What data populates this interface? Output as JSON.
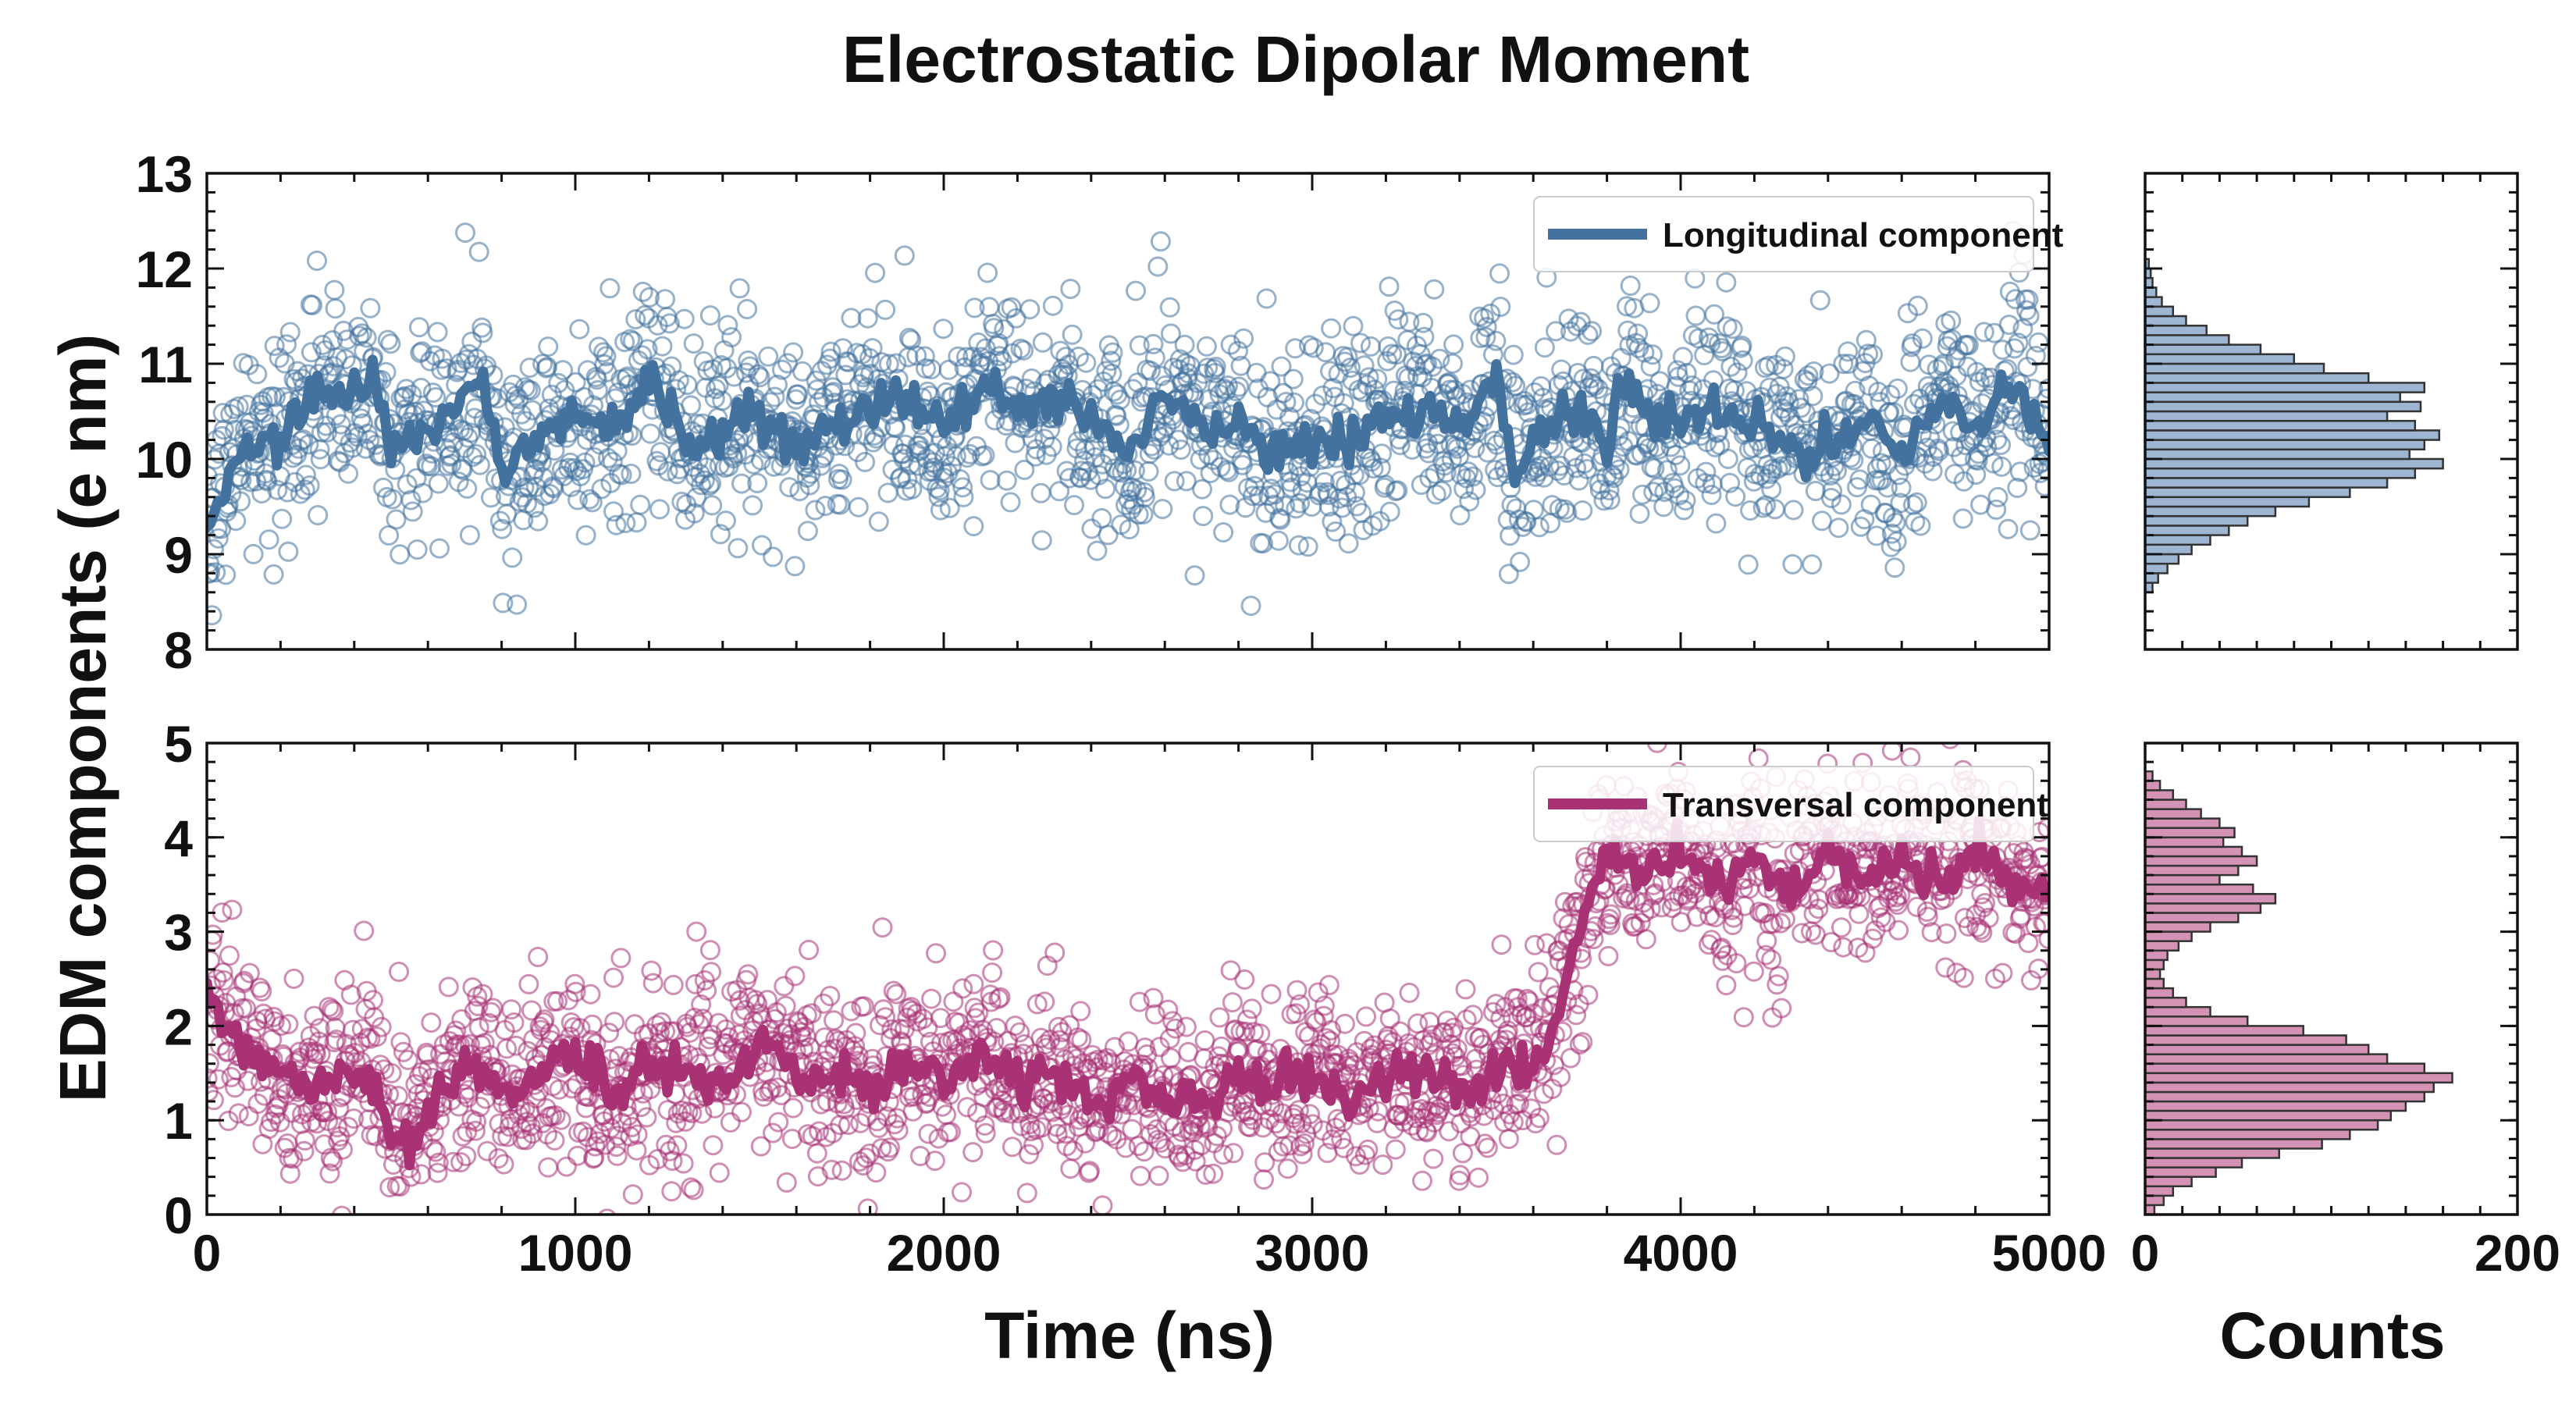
{
  "title": "Electrostatic Dipolar Moment",
  "ylabel": "EDM components (e nm)",
  "xlabel": "Time (ns)",
  "hist_xlabel": "Counts",
  "colors": {
    "longitudinal": "#44729f",
    "transversal": "#a83274",
    "long_hist_fill": "#9eb6d1",
    "trans_hist_fill": "#d492b4"
  },
  "chart_data": [
    {
      "type": "scatter",
      "panel": "top",
      "series_name": "Longitudinal component",
      "legend_position": "top-right",
      "xlim": [
        0,
        5000
      ],
      "ylim": [
        8,
        13
      ],
      "xticks": [
        0,
        1000,
        2000,
        3000,
        4000,
        5000
      ],
      "yticks": [
        8,
        9,
        10,
        11,
        12,
        13
      ],
      "ytick_labels": [
        "8",
        "9",
        "10",
        "11",
        "12",
        "13"
      ],
      "n_points": 2000,
      "scatter_spread_sd": 0.55,
      "running_mean": {
        "x": [
          0,
          100,
          200,
          300,
          400,
          450,
          500,
          600,
          700,
          750,
          800,
          900,
          1000,
          1100,
          1200,
          1300,
          1400,
          1500,
          1600,
          1700,
          1800,
          1900,
          2000,
          2100,
          2200,
          2300,
          2400,
          2500,
          2600,
          2700,
          2800,
          2900,
          3000,
          3100,
          3200,
          3300,
          3400,
          3500,
          3550,
          3600,
          3700,
          3800,
          3850,
          3900,
          4000,
          4100,
          4200,
          4300,
          4350,
          4400,
          4500,
          4600,
          4700,
          4800,
          4900,
          5000
        ],
        "y": [
          9.3,
          10.2,
          10.1,
          10.7,
          10.6,
          10.9,
          10.1,
          10.3,
          10.6,
          10.8,
          9.9,
          10.2,
          10.4,
          10.3,
          10.9,
          10.3,
          10.3,
          10.5,
          10.2,
          10.4,
          10.5,
          10.6,
          10.3,
          10.8,
          10.5,
          10.7,
          10.4,
          10.0,
          10.7,
          10.3,
          10.4,
          10.0,
          10.2,
          10.2,
          10.4,
          10.6,
          10.3,
          10.9,
          9.8,
          10.2,
          10.6,
          10.2,
          10.8,
          10.4,
          10.4,
          10.6,
          10.4,
          10.2,
          10.0,
          10.2,
          10.4,
          10.0,
          10.6,
          10.3,
          10.8,
          10.2
        ]
      }
    },
    {
      "type": "scatter",
      "panel": "bottom",
      "series_name": "Transversal component",
      "legend_position": "top-right",
      "xlim": [
        0,
        5000
      ],
      "ylim": [
        0,
        5
      ],
      "xticks": [
        0,
        1000,
        2000,
        3000,
        4000,
        5000
      ],
      "xtick_labels": [
        "0",
        "1000",
        "2000",
        "3000",
        "4000",
        "5000"
      ],
      "yticks": [
        0,
        1,
        2,
        3,
        4,
        5
      ],
      "ytick_labels": [
        "0",
        "1",
        "2",
        "3",
        "4",
        "5"
      ],
      "n_points": 2000,
      "scatter_spread_sd": 0.5,
      "running_mean": {
        "x": [
          0,
          100,
          200,
          300,
          400,
          500,
          550,
          600,
          700,
          800,
          900,
          1000,
          1100,
          1200,
          1300,
          1400,
          1500,
          1600,
          1700,
          1800,
          1900,
          2000,
          2100,
          2200,
          2300,
          2400,
          2500,
          2600,
          2700,
          2800,
          2900,
          3000,
          3100,
          3200,
          3300,
          3400,
          3500,
          3550,
          3600,
          3650,
          3700,
          3750,
          3800,
          3900,
          4000,
          4100,
          4200,
          4300,
          4400,
          4500,
          4600,
          4700,
          4800,
          4900,
          5000
        ],
        "y": [
          2.2,
          1.8,
          1.5,
          1.3,
          1.6,
          1.0,
          0.8,
          1.1,
          1.6,
          1.3,
          1.5,
          1.7,
          1.3,
          1.6,
          1.5,
          1.4,
          1.8,
          1.6,
          1.5,
          1.4,
          1.6,
          1.4,
          1.8,
          1.3,
          1.5,
          1.1,
          1.4,
          1.2,
          1.1,
          1.5,
          1.3,
          1.5,
          1.2,
          1.4,
          1.5,
          1.3,
          1.5,
          1.7,
          1.5,
          1.9,
          2.6,
          3.3,
          3.8,
          3.6,
          3.9,
          3.5,
          3.8,
          3.4,
          3.9,
          3.6,
          3.8,
          3.5,
          3.9,
          3.6,
          3.4
        ]
      }
    },
    {
      "type": "bar",
      "panel": "top-histogram",
      "orientation": "horizontal",
      "series_name": "Longitudinal component",
      "xlim": [
        0,
        200
      ],
      "xticks": [
        0,
        200
      ],
      "ylim": [
        8,
        13
      ],
      "bin_width": 0.1,
      "bins_start": [
        8.6,
        8.7,
        8.8,
        8.9,
        9.0,
        9.1,
        9.2,
        9.3,
        9.4,
        9.5,
        9.6,
        9.7,
        9.8,
        9.9,
        10.0,
        10.1,
        10.2,
        10.3,
        10.4,
        10.5,
        10.6,
        10.7,
        10.8,
        10.9,
        11.0,
        11.1,
        11.2,
        11.3,
        11.4,
        11.5,
        11.6,
        11.7,
        11.8,
        11.9,
        12.0
      ],
      "counts": [
        4,
        7,
        12,
        18,
        25,
        35,
        45,
        55,
        70,
        88,
        110,
        130,
        145,
        160,
        142,
        150,
        158,
        145,
        130,
        148,
        137,
        150,
        120,
        96,
        80,
        62,
        45,
        33,
        22,
        15,
        9,
        6,
        4,
        3,
        2
      ]
    },
    {
      "type": "bar",
      "panel": "bottom-histogram",
      "orientation": "horizontal",
      "series_name": "Transversal component",
      "xlim": [
        0,
        200
      ],
      "xticks": [
        0,
        200
      ],
      "xtick_labels": [
        "0",
        "200"
      ],
      "ylim": [
        0,
        5
      ],
      "bin_width": 0.1,
      "bins_start": [
        0.0,
        0.1,
        0.2,
        0.3,
        0.4,
        0.5,
        0.6,
        0.7,
        0.8,
        0.9,
        1.0,
        1.1,
        1.2,
        1.3,
        1.4,
        1.5,
        1.6,
        1.7,
        1.8,
        1.9,
        2.0,
        2.1,
        2.2,
        2.3,
        2.4,
        2.5,
        2.6,
        2.7,
        2.8,
        2.9,
        3.0,
        3.1,
        3.2,
        3.3,
        3.4,
        3.5,
        3.6,
        3.7,
        3.8,
        3.9,
        4.0,
        4.1,
        4.2,
        4.3,
        4.4,
        4.5,
        4.6
      ],
      "counts": [
        5,
        10,
        15,
        25,
        38,
        52,
        72,
        95,
        110,
        125,
        132,
        140,
        150,
        155,
        165,
        150,
        130,
        120,
        108,
        85,
        55,
        35,
        22,
        15,
        10,
        8,
        10,
        12,
        18,
        25,
        35,
        50,
        62,
        70,
        58,
        40,
        50,
        60,
        52,
        42,
        48,
        40,
        30,
        22,
        15,
        8,
        4
      ]
    }
  ]
}
